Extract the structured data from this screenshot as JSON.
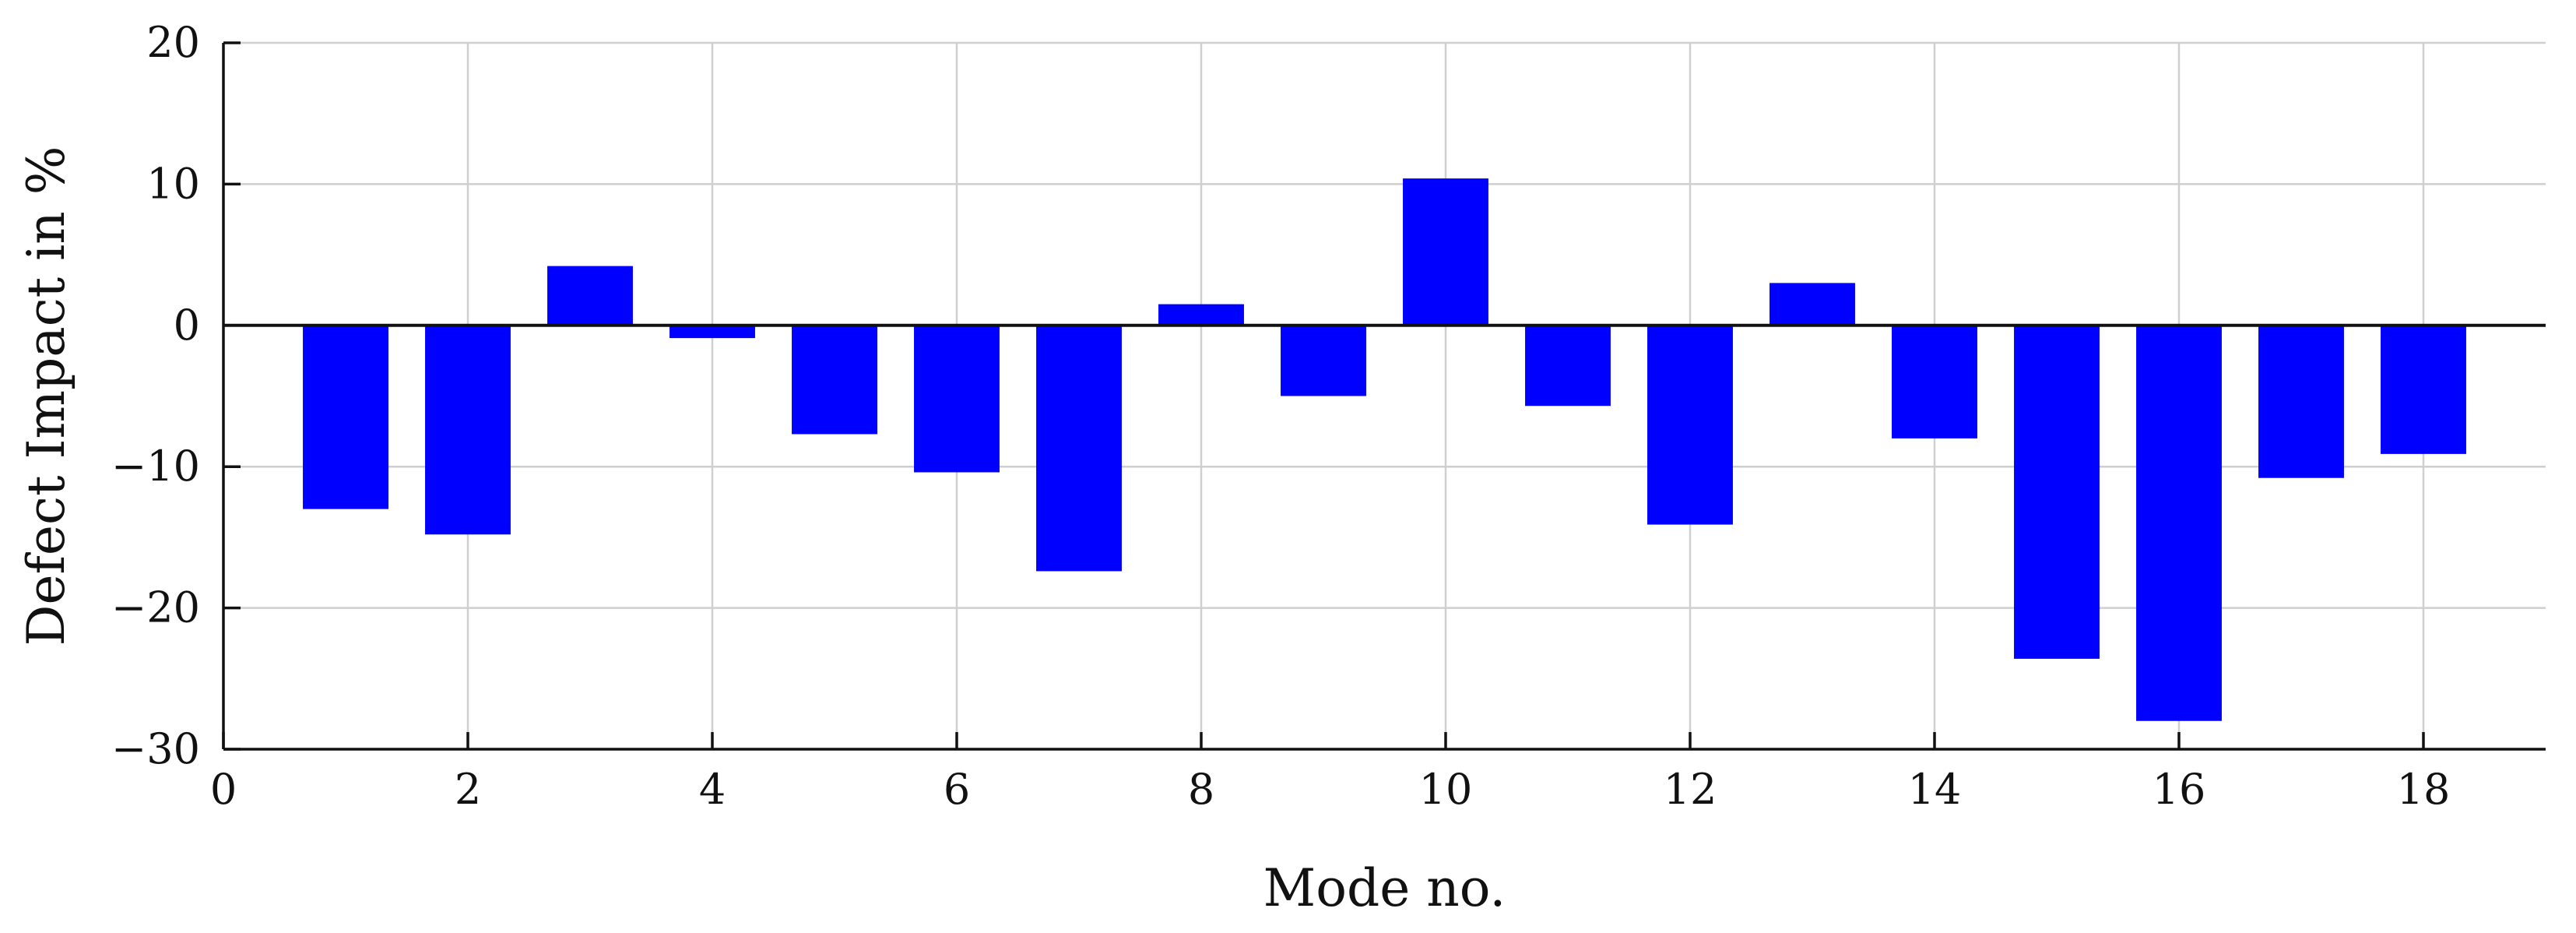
{
  "chart_data": {
    "type": "bar",
    "title": "",
    "xlabel": "Mode no.",
    "ylabel": "Defect Impact in %",
    "x": [
      1,
      2,
      3,
      4,
      5,
      6,
      7,
      8,
      9,
      10,
      11,
      12,
      13,
      14,
      15,
      16,
      17,
      18
    ],
    "values": [
      -13.0,
      -14.8,
      4.2,
      -0.9,
      -7.7,
      -10.4,
      -17.4,
      1.5,
      -5.0,
      10.4,
      -5.7,
      -14.1,
      3.0,
      -8.0,
      -23.6,
      -28.0,
      -10.8,
      -9.1
    ],
    "xlim": [
      0,
      19
    ],
    "ylim": [
      -30,
      20
    ],
    "xticks": [
      0,
      2,
      4,
      6,
      8,
      10,
      12,
      14,
      16,
      18
    ],
    "yticks": [
      20,
      10,
      0,
      -10,
      -20,
      -30
    ],
    "xtick_labels": [
      "0",
      "2",
      "4",
      "6",
      "8",
      "10",
      "12",
      "14",
      "16",
      "18"
    ],
    "ytick_labels": [
      "20",
      "10",
      "0",
      "−10",
      "−20",
      "−30"
    ],
    "grid": true,
    "bar_width": 0.7,
    "bar_color": "#0000ff",
    "grid_color": "#cfcfcf",
    "axis_color": "#111111",
    "zero_line": true,
    "legend": "none"
  }
}
